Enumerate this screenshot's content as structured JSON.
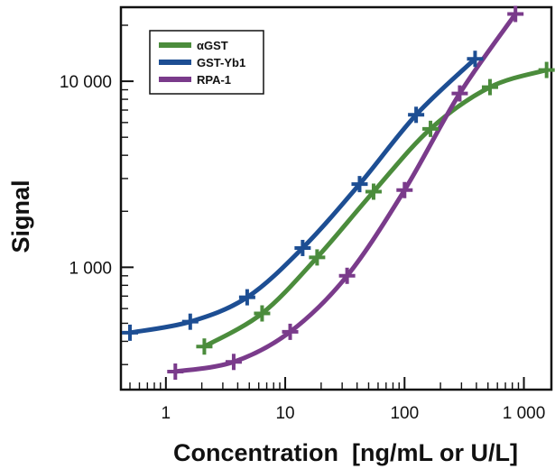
{
  "chart_data": {
    "type": "line",
    "xlabel": "Concentration  [ng/mL or U/L]",
    "ylabel": "Signal",
    "x_scale": "log",
    "y_scale": "log",
    "xlim": [
      0.42,
      1700
    ],
    "ylim": [
      220,
      25000
    ],
    "x_ticks": [
      1,
      10,
      100,
      1000
    ],
    "x_tick_labels": [
      "1",
      "10",
      "100",
      "1 000"
    ],
    "y_ticks": [
      1000,
      10000
    ],
    "y_tick_labels": [
      "1 000",
      "10 000"
    ],
    "grid": false,
    "legend_position": "top-left",
    "series": [
      {
        "name": "αGST",
        "color": "#4b8c3c",
        "x": [
          2.1,
          6.4,
          18.5,
          55,
          165,
          520,
          1550
        ],
        "y": [
          375,
          565,
          1130,
          2550,
          5550,
          9300,
          11500
        ]
      },
      {
        "name": "GST-Yb1",
        "color": "#1d4e93",
        "x": [
          0.5,
          1.6,
          4.8,
          14,
          42,
          125,
          390
        ],
        "y": [
          445,
          510,
          690,
          1270,
          2800,
          6600,
          13200
        ]
      },
      {
        "name": "RPA-1",
        "color": "#7a3b8b",
        "x": [
          1.2,
          3.7,
          11,
          33,
          100,
          290,
          850
        ],
        "y": [
          275,
          310,
          450,
          900,
          2600,
          8600,
          23000
        ]
      }
    ]
  }
}
